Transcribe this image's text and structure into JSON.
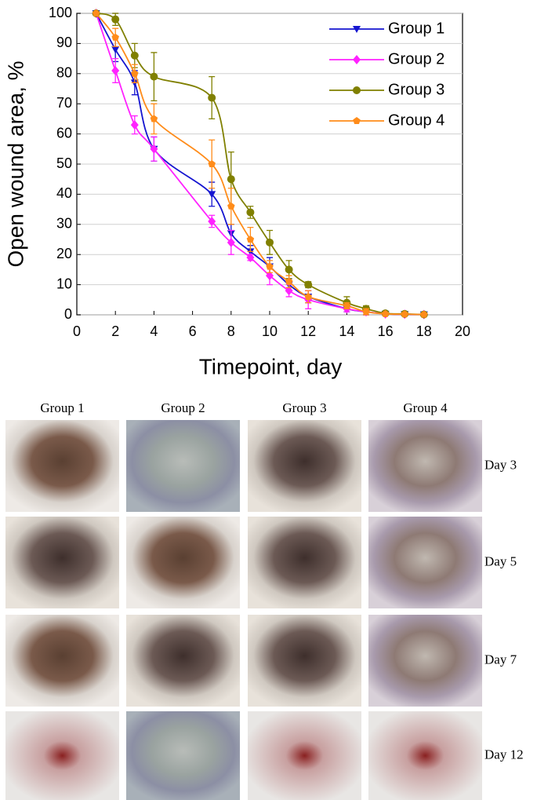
{
  "chart_data": {
    "type": "line",
    "x_label": "Timepoint, day",
    "y_label": "Open wound area, %",
    "x": [
      1,
      2,
      3,
      4,
      7,
      8,
      9,
      10,
      11,
      12,
      14,
      15,
      16,
      17,
      18
    ],
    "xlim": [
      0,
      20
    ],
    "ylim": [
      0,
      100
    ],
    "xticks": [
      0,
      2,
      4,
      6,
      8,
      10,
      12,
      14,
      16,
      18,
      20
    ],
    "yticks": [
      0,
      10,
      20,
      30,
      40,
      50,
      60,
      70,
      80,
      90,
      100
    ],
    "grid": true,
    "legend": "upper right",
    "series": [
      {
        "name": "Group 1",
        "color": "#1515d0",
        "marker": "triangle-down",
        "values": [
          100,
          88,
          77,
          55,
          40,
          27,
          21,
          16,
          10,
          6,
          2,
          1,
          0.3,
          0.2,
          0.1
        ],
        "errors": [
          0,
          4,
          4,
          4,
          4,
          3,
          2,
          3,
          2,
          2,
          1,
          1,
          0.5,
          0.3,
          0.2
        ]
      },
      {
        "name": "Group 2",
        "color": "#ff22ff",
        "marker": "diamond",
        "values": [
          100,
          81,
          63,
          55,
          31,
          24,
          19,
          13,
          8,
          5,
          2,
          1,
          0.3,
          0.2,
          0.1
        ],
        "errors": [
          0,
          4,
          3,
          4,
          2,
          4,
          1,
          3,
          2,
          3,
          1,
          1,
          0.3,
          0.2,
          0.1
        ]
      },
      {
        "name": "Group 3",
        "color": "#808000",
        "marker": "circle",
        "values": [
          100,
          98,
          86,
          79,
          72,
          45,
          34,
          24,
          15,
          10,
          4,
          2,
          0.5,
          0.3,
          0.1
        ],
        "errors": [
          0,
          2,
          4,
          8,
          7,
          9,
          2,
          4,
          3,
          1,
          2,
          1,
          0.5,
          0.3,
          0.1
        ]
      },
      {
        "name": "Group 4",
        "color": "#ff8c1a",
        "marker": "pentagon",
        "values": [
          100,
          92,
          80,
          65,
          50,
          36,
          25,
          16,
          11,
          6,
          3,
          1,
          0.3,
          0.2,
          0.1
        ],
        "errors": [
          0,
          3,
          3,
          5,
          8,
          6,
          4,
          2,
          2,
          2,
          1,
          1,
          0.3,
          0.2,
          0.1
        ]
      }
    ]
  },
  "photos": {
    "columns": [
      "Group 1",
      "Group 2",
      "Group 3",
      "Group 4"
    ],
    "rows": [
      "Day 3",
      "Day 5",
      "Day 7",
      "Day 12"
    ]
  }
}
